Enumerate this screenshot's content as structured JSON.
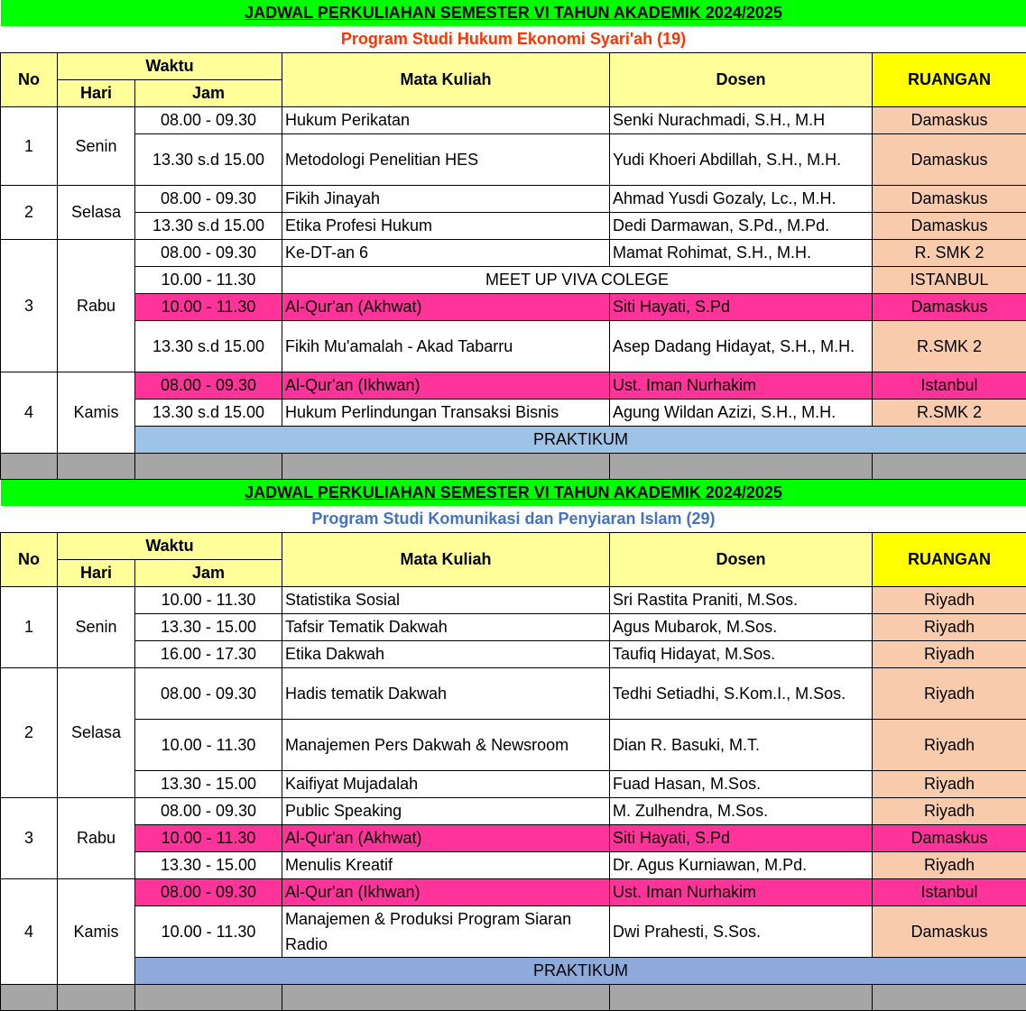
{
  "colors": {
    "title_bg": "#00ff00",
    "header_bg": "#ffff99",
    "ruangan_bg": "#ffff00",
    "room_bg": "#f8cbad",
    "quran_bg": "#ff3399",
    "gray_bg": "#a6a6a6"
  },
  "headers": {
    "no": "No",
    "waktu": "Waktu",
    "hari": "Hari",
    "jam": "Jam",
    "mk": "Mata Kuliah",
    "dosen": "Dosen",
    "ruangan": "RUANGAN"
  },
  "sections": [
    {
      "title": "JADWAL PERKULIAHAN SEMESTER VI TAHUN AKADEMIK 2024/2025",
      "subtitle": "Program Studi Hukum Ekonomi Syari'ah (19)",
      "subtitle_color": "#ff3300",
      "praktikum": "PRAKTIKUM",
      "praktikum_color": "#9dc3e6",
      "days": [
        {
          "no": "1",
          "hari": "Senin",
          "rows": [
            {
              "jam": "08.00 - 09.30",
              "mk": "Hukum Perikatan",
              "dosen": "Senki Nurachmadi, S.H., M.H",
              "ruang": "Damaskus"
            },
            {
              "jam": "13.30 s.d 15.00",
              "mk": "Metodologi Penelitian HES",
              "dosen": "Yudi Khoeri Abdillah, S.H., M.H.",
              "ruang": "Damaskus",
              "tall": true
            }
          ]
        },
        {
          "no": "2",
          "hari": "Selasa",
          "rows": [
            {
              "jam": "08.00 - 09.30",
              "mk": "Fikih Jinayah",
              "dosen": "Ahmad Yusdi Gozaly, Lc., M.H.",
              "ruang": "Damaskus"
            },
            {
              "jam": "13.30 s.d 15.00",
              "mk": "Etika Profesi Hukum",
              "dosen": "Dedi Darmawan, S.Pd., M.Pd.",
              "ruang": "Damaskus"
            }
          ]
        },
        {
          "no": "3",
          "hari": "Rabu",
          "rows": [
            {
              "jam": "08.00 - 09.30",
              "mk": "Ke-DT-an 6",
              "dosen": "Mamat Rohimat, S.H., M.H.",
              "ruang": "R. SMK 2"
            },
            {
              "jam": "10.00 - 11.30",
              "mk": "MEET UP VIVA COLEGE",
              "merged": true,
              "ruang": "ISTANBUL"
            },
            {
              "jam": "10.00 - 11.30",
              "mk": "Al-Qur'an (Akhwat)",
              "dosen": "Siti Hayati, S.Pd",
              "ruang": "Damaskus",
              "pink": true
            },
            {
              "jam": "13.30 s.d 15.00",
              "mk": "Fikih Mu'amalah - Akad Tabarru",
              "dosen": "Asep Dadang Hidayat, S.H., M.H.",
              "ruang": "R.SMK 2",
              "tall": true
            }
          ]
        },
        {
          "no": "4",
          "hari": "Kamis",
          "rows": [
            {
              "jam": "08.00 - 09.30",
              "mk": "Al-Qur'an (Ikhwan)",
              "dosen": "Ust. Iman Nurhakim",
              "ruang": "Istanbul",
              "pink": true
            },
            {
              "jam": "13.30 s.d 15.00",
              "mk": "Hukum Perlindungan Transaksi Bisnis",
              "dosen": "Agung Wildan Azizi, S.H., M.H.",
              "ruang": "R.SMK 2"
            }
          ]
        }
      ]
    },
    {
      "title": "JADWAL PERKULIAHAN SEMESTER VI TAHUN AKADEMIK 2024/2025",
      "subtitle": "Program Studi Komunikasi dan Penyiaran Islam (29)",
      "subtitle_color": "#4472c4",
      "praktikum": "PRAKTIKUM",
      "praktikum_color": "#8eaadb",
      "days": [
        {
          "no": "1",
          "hari": "Senin",
          "rows": [
            {
              "jam": "10.00 - 11.30",
              "mk": "Statistika Sosial",
              "dosen": "Sri Rastita Praniti, M.Sos.",
              "ruang": "Riyadh"
            },
            {
              "jam": "13.30 - 15.00",
              "mk": "Tafsir Tematik Dakwah",
              "dosen": "Agus Mubarok, M.Sos.",
              "ruang": "Riyadh"
            },
            {
              "jam": "16.00 - 17.30",
              "mk": "Etika Dakwah",
              "dosen": "Taufiq Hidayat, M.Sos.",
              "ruang": "Riyadh"
            }
          ]
        },
        {
          "no": "2",
          "hari": "Selasa",
          "rows": [
            {
              "jam": "08.00 - 09.30",
              "mk": "Hadis tematik Dakwah",
              "dosen": "Tedhi Setiadhi, S.Kom.I., M.Sos.",
              "ruang": "Riyadh",
              "tall": true
            },
            {
              "jam": "10.00 - 11.30",
              "mk": "Manajemen Pers Dakwah & Newsroom",
              "dosen": "Dian R. Basuki, M.T.",
              "ruang": "Riyadh",
              "tall": true
            },
            {
              "jam": "13.30 - 15.00",
              "mk": "Kaifiyat Mujadalah",
              "dosen": "Fuad Hasan, M.Sos.",
              "ruang": "Riyadh"
            }
          ]
        },
        {
          "no": "3",
          "hari": "Rabu",
          "rows": [
            {
              "jam": "08.00 - 09.30",
              "mk": "Public Speaking",
              "dosen": "M. Zulhendra, M.Sos.",
              "ruang": "Riyadh"
            },
            {
              "jam": "10.00 - 11.30",
              "mk": "Al-Qur'an (Akhwat)",
              "dosen": "Siti Hayati, S.Pd",
              "ruang": "Damaskus",
              "pink": true
            },
            {
              "jam": "13.30 - 15.00",
              "mk": "Menulis Kreatif",
              "dosen": "Dr. Agus Kurniawan, M.Pd.",
              "ruang": "Riyadh"
            }
          ]
        },
        {
          "no": "4",
          "hari": "Kamis",
          "rows": [
            {
              "jam": "08.00 - 09.30",
              "mk": "Al-Qur'an (Ikhwan)",
              "dosen": "Ust. Iman Nurhakim",
              "ruang": "Istanbul",
              "pink": true
            },
            {
              "jam": "10.00 - 11.30",
              "mk": "Manajemen & Produksi Program Siaran Radio",
              "dosen": "Dwi Prahesti, S.Sos.",
              "ruang": "Damaskus",
              "tall": true
            }
          ]
        }
      ]
    }
  ]
}
